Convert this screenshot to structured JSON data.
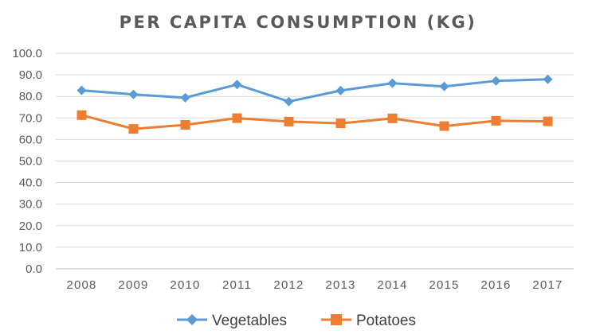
{
  "chart_data": {
    "type": "line",
    "title": "PER CAPITA CONSUMPTION (KG)",
    "categories": [
      "2008",
      "2009",
      "2010",
      "2011",
      "2012",
      "2013",
      "2014",
      "2015",
      "2016",
      "2017"
    ],
    "y_ticks": [
      "0.0",
      "10.0",
      "20.0",
      "30.0",
      "40.0",
      "50.0",
      "60.0",
      "70.0",
      "80.0",
      "90.0",
      "100.0"
    ],
    "ylim": [
      0,
      100
    ],
    "grid": true,
    "legend_position": "bottom",
    "series": [
      {
        "name": "Vegetables",
        "color": "#5b9bd5",
        "marker": "diamond",
        "values": [
          82.8,
          80.9,
          79.4,
          85.5,
          77.6,
          82.7,
          86.1,
          84.6,
          87.2,
          87.9
        ]
      },
      {
        "name": "Potatoes",
        "color": "#ed7d31",
        "marker": "square",
        "values": [
          71.3,
          64.9,
          66.8,
          69.9,
          68.3,
          67.5,
          69.8,
          66.2,
          68.7,
          68.4
        ]
      }
    ]
  }
}
